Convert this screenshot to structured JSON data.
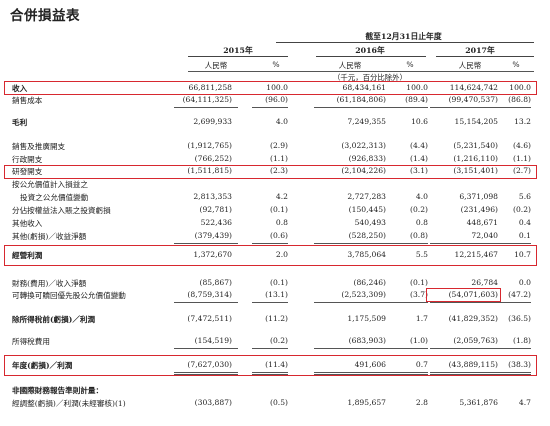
{
  "title": "合併損益表",
  "period": "截至12月31日止年度",
  "years": [
    "2015年",
    "2016年",
    "2017年"
  ],
  "col_currency": "人民幣",
  "col_pct": "%",
  "unit_note": "（千元，百分比除外）",
  "rows": [
    {
      "label": "收入",
      "a": "66,811,258",
      "ap": "100.0",
      "b": "68,434,161",
      "bp": "100.0",
      "c": "114,624,742",
      "cp": "100.0"
    },
    {
      "label": "銷售成本",
      "a": "(64,111,325)",
      "ap": "(96.0)",
      "b": "(61,184,806)",
      "bp": "(89.4)",
      "c": "(99,470,537)",
      "cp": "(86.8)"
    },
    {
      "label": "毛利",
      "a": "2,699,933",
      "ap": "4.0",
      "b": "7,249,355",
      "bp": "10.6",
      "c": "15,154,205",
      "cp": "13.2"
    },
    {
      "label": "銷售及推廣開支",
      "a": "(1,912,765)",
      "ap": "(2.9)",
      "b": "(3,022,313)",
      "bp": "(4.4)",
      "c": "(5,231,540)",
      "cp": "(4.6)"
    },
    {
      "label": "行政開支",
      "a": "(766,252)",
      "ap": "(1.1)",
      "b": "(926,833)",
      "bp": "(1.4)",
      "c": "(1,216,110)",
      "cp": "(1.1)"
    },
    {
      "label": "研發開支",
      "a": "(1,511,815)",
      "ap": "(2.3)",
      "b": "(2,104,226)",
      "bp": "(3.1)",
      "c": "(3,151,401)",
      "cp": "(2.7)"
    },
    {
      "label": "按公允價值計入損益之",
      "a": "",
      "ap": "",
      "b": "",
      "bp": "",
      "c": "",
      "cp": ""
    },
    {
      "label": "投資之公允價值變動",
      "a": "2,813,353",
      "ap": "4.2",
      "b": "2,727,283",
      "bp": "4.0",
      "c": "6,371,098",
      "cp": "5.6"
    },
    {
      "label": "分佔按權益法入賬之投資虧損",
      "a": "(92,781)",
      "ap": "(0.1)",
      "b": "(150,445)",
      "bp": "(0.2)",
      "c": "(231,496)",
      "cp": "(0.2)"
    },
    {
      "label": "其他收入",
      "a": "522,436",
      "ap": "0.8",
      "b": "540,493",
      "bp": "0.8",
      "c": "448,671",
      "cp": "0.4"
    },
    {
      "label": "其他(虧損)／收益淨額",
      "a": "(379,439)",
      "ap": "(0.6)",
      "b": "(528,250)",
      "bp": "(0.8)",
      "c": "72,040",
      "cp": "0.1"
    },
    {
      "label": "經營利潤",
      "a": "1,372,670",
      "ap": "2.0",
      "b": "3,785,064",
      "bp": "5.5",
      "c": "12,215,467",
      "cp": "10.7"
    },
    {
      "label": "財務(費用)／收入淨額",
      "a": "(85,867)",
      "ap": "(0.1)",
      "b": "(86,246)",
      "bp": "(0.1)",
      "c": "26,784",
      "cp": "0.0"
    },
    {
      "label": "可轉換可贖回優先股公允價值變動",
      "a": "(8,759,314)",
      "ap": "(13.1)",
      "b": "(2,523,309)",
      "bp": "(3.7)",
      "c": "(54,071,603)",
      "cp": "(47.2)"
    },
    {
      "label": "除所得稅前(虧損)／利潤",
      "a": "(7,472,511)",
      "ap": "(11.2)",
      "b": "1,175,509",
      "bp": "1.7",
      "c": "(41,829,352)",
      "cp": "(36.5)"
    },
    {
      "label": "所得稅費用",
      "a": "(154,519)",
      "ap": "(0.2)",
      "b": "(683,903)",
      "bp": "(1.0)",
      "c": "(2,059,763)",
      "cp": "(1.8)"
    },
    {
      "label": "年度(虧損)／利潤",
      "a": "(7,627,030)",
      "ap": "(11.4)",
      "b": "491,606",
      "bp": "0.7",
      "c": "(43,889,115)",
      "cp": "(38.3)"
    },
    {
      "label": "非國際財務報告準則計量：",
      "a": "",
      "ap": "",
      "b": "",
      "bp": "",
      "c": "",
      "cp": ""
    },
    {
      "label": "經調整(虧損)／利潤(未經審核)(1)",
      "a": "(303,887)",
      "ap": "(0.5)",
      "b": "1,895,657",
      "bp": "2.8",
      "c": "5,361,876",
      "cp": "4.7"
    }
  ],
  "highlight_color": "#d7282f"
}
